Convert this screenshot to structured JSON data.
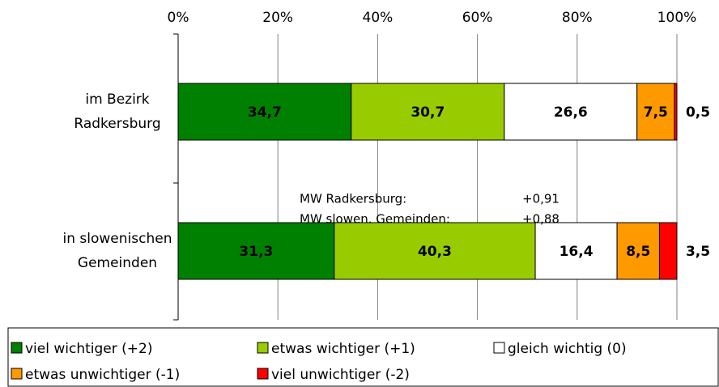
{
  "chart_data": {
    "type": "stacked-bar-horizontal",
    "categories": [
      "im Bezirk Radkersburg",
      "in slowenischen Gemeinden"
    ],
    "series": [
      {
        "name": "viel wichtiger (+2)",
        "color": "#008000",
        "values": [
          34.7,
          31.3
        ],
        "value_labels": [
          "34,7",
          "31,3"
        ]
      },
      {
        "name": "etwas wichtiger (+1)",
        "color": "#99cc00",
        "values": [
          30.7,
          40.3
        ],
        "value_labels": [
          "30,7",
          "40,3"
        ]
      },
      {
        "name": "gleich wichtig (0)",
        "color": "#ffffff",
        "values": [
          26.6,
          16.4
        ],
        "value_labels": [
          "26,6",
          "16,4"
        ]
      },
      {
        "name": "etwas unwichtiger (-1)",
        "color": "#ff9900",
        "values": [
          7.5,
          8.5
        ],
        "value_labels": [
          "7,5",
          "8,5"
        ]
      },
      {
        "name": "viel unwichtiger (-2)",
        "color": "#ff0000",
        "values": [
          0.5,
          3.5
        ],
        "value_labels": [
          "0,5",
          "3,5"
        ]
      }
    ],
    "xlim": [
      0,
      100
    ],
    "xticks": [
      {
        "value": 0,
        "label": "0%"
      },
      {
        "value": 20,
        "label": "20%"
      },
      {
        "value": 40,
        "label": "40%"
      },
      {
        "value": 60,
        "label": "60%"
      },
      {
        "value": 80,
        "label": "80%"
      },
      {
        "value": 100,
        "label": "100%"
      }
    ],
    "grid": true,
    "legend": "bottom",
    "annotations": [
      "MW Radkersburg:",
      "+0,91",
      "MW slowen. Gemeinden:",
      "+0,88"
    ]
  }
}
